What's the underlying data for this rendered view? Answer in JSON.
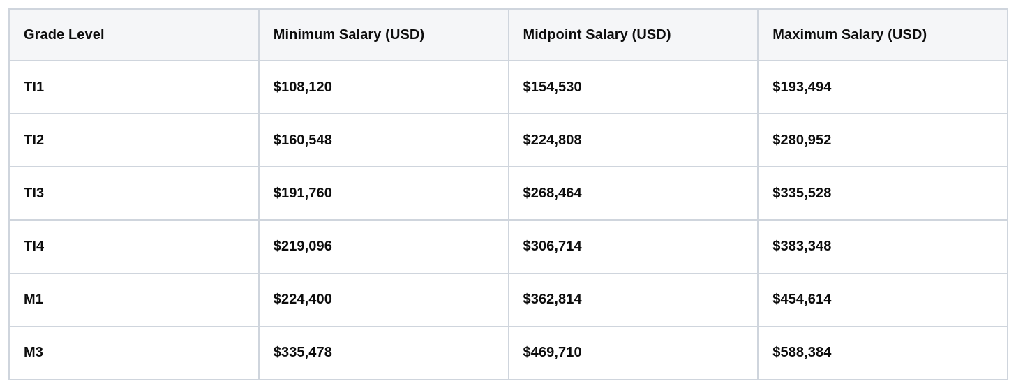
{
  "table": {
    "columns": [
      "Grade Level",
      "Minimum Salary (USD)",
      "Midpoint Salary (USD)",
      "Maximum Salary (USD)"
    ],
    "rows": [
      [
        "TI1",
        "$108,120",
        "$154,530",
        "$193,494"
      ],
      [
        "TI2",
        "$160,548",
        "$224,808",
        "$280,952"
      ],
      [
        "TI3",
        "$191,760",
        "$268,464",
        "$335,528"
      ],
      [
        "TI4",
        "$219,096",
        "$306,714",
        "$383,348"
      ],
      [
        "M1",
        "$224,400",
        "$362,814",
        "$454,614"
      ],
      [
        "M3",
        "$335,478",
        "$469,710",
        "$588,384"
      ]
    ]
  },
  "colors": {
    "border": "#cfd5dd",
    "header_background": "#f5f6f8",
    "cell_background": "#ffffff",
    "text": "#0d0d0d"
  },
  "chart_data": {
    "type": "table",
    "title": "",
    "columns": [
      "Grade Level",
      "Minimum Salary (USD)",
      "Midpoint Salary (USD)",
      "Maximum Salary (USD)"
    ],
    "categories": [
      "TI1",
      "TI2",
      "TI3",
      "TI4",
      "M1",
      "M3"
    ],
    "series": [
      {
        "name": "Minimum Salary (USD)",
        "values": [
          108120,
          160548,
          191760,
          219096,
          224400,
          335478
        ]
      },
      {
        "name": "Midpoint Salary (USD)",
        "values": [
          154530,
          224808,
          268464,
          306714,
          362814,
          469710
        ]
      },
      {
        "name": "Maximum Salary (USD)",
        "values": [
          193494,
          280952,
          335528,
          383348,
          454614,
          588384
        ]
      }
    ]
  }
}
